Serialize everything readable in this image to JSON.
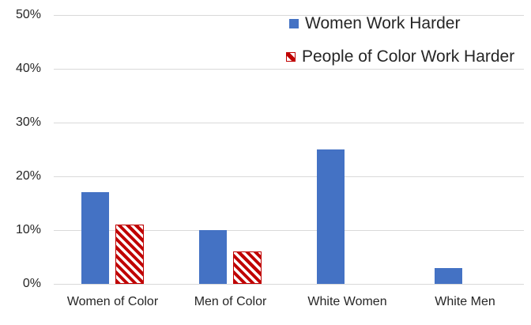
{
  "chart_data": {
    "type": "bar",
    "title": "",
    "categories": [
      "Women of Color",
      "Men of Color",
      "White Women",
      "White Men"
    ],
    "series": [
      {
        "name": "Women Work Harder",
        "color": "#4472C4",
        "pattern": "solid",
        "values": [
          17,
          10,
          25,
          3
        ]
      },
      {
        "name": "People of Color Work Harder",
        "color": "#C00000",
        "pattern": "diagonal-hatch",
        "values": [
          11,
          6,
          null,
          null
        ]
      }
    ],
    "y_ticks": [
      "0%",
      "10%",
      "20%",
      "30%",
      "40%",
      "50%"
    ],
    "y_tick_values": [
      0,
      10,
      20,
      30,
      40,
      50
    ],
    "ylim": [
      0,
      50
    ],
    "grid": true,
    "legend_position": "top-right",
    "colors": {
      "gridline": "#D9D9D9",
      "text": "#262626",
      "background": "#FFFFFF",
      "hatch_background": "#FFFFFF"
    }
  }
}
